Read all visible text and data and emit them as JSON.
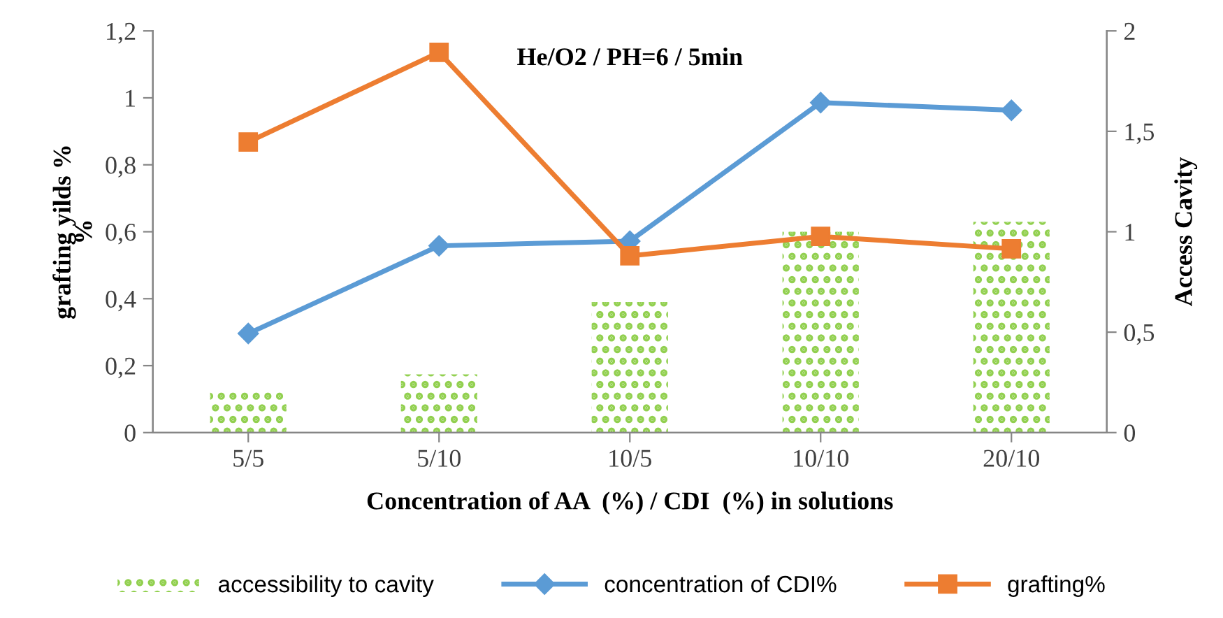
{
  "chart_data": {
    "type": "line",
    "title": "He/O2 / PH=6 / 5min",
    "xlabel": "Concentration of AA  (%) / CDI  (%) in solutions",
    "ylabel": "grafting yilds %\n%",
    "y2label": "Access Cavity",
    "categories": [
      "5/5",
      "5/10",
      "10/5",
      "10/10",
      "20/10"
    ],
    "series": [
      {
        "name": "accessibility to cavity",
        "type": "bar",
        "axis": "y2",
        "color": "#92d050",
        "values": [
          0.2,
          0.29,
          0.65,
          1.0,
          1.05
        ]
      },
      {
        "name": "concentration of CDI%",
        "color": "#5b9bd5",
        "marker": "diamond",
        "values": [
          0.296,
          0.558,
          0.572,
          0.986,
          0.963
        ]
      },
      {
        "name": "grafting%",
        "color": "#ed7d31",
        "marker": "square",
        "values": [
          0.868,
          1.136,
          0.528,
          0.586,
          0.549
        ]
      }
    ],
    "ylim": [
      0,
      1.2
    ],
    "yticks": [
      0,
      {
        "value": 0.2,
        "label": "0,2"
      },
      {
        "value": 0.4,
        "label": "0,4"
      },
      {
        "value": 0.6,
        "label": "0,6"
      },
      {
        "value": 0.8,
        "label": "0,8"
      },
      1,
      {
        "value": 1.2,
        "label": "1,2"
      }
    ],
    "y2lim": [
      0,
      2
    ],
    "y2ticks": [
      0,
      {
        "value": 0.5,
        "label": "0,5"
      },
      1,
      {
        "value": 1.5,
        "label": "1,5"
      },
      2
    ],
    "grid": false,
    "legend": "bottom"
  }
}
